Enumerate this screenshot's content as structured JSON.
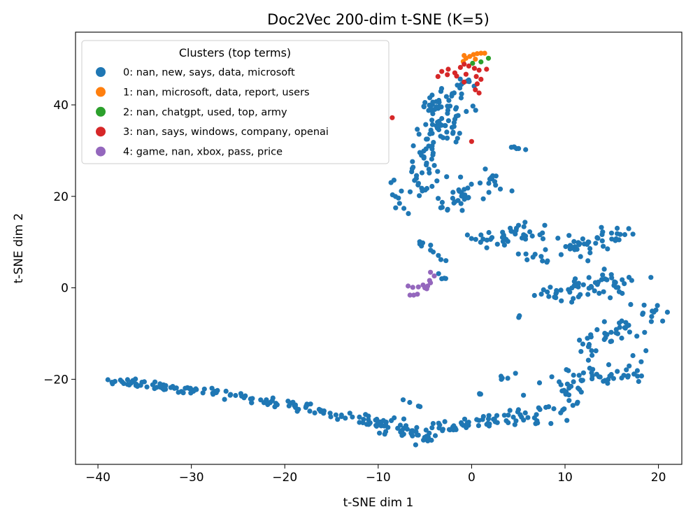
{
  "chart_data": {
    "type": "scatter",
    "title": "Doc2Vec 200-dim t-SNE (K=5)",
    "xlabel": "t-SNE dim 1",
    "ylabel": "t-SNE dim 2",
    "xlim": [
      -42.4,
      22.5
    ],
    "ylim": [
      -38.6,
      55.9
    ],
    "xticks": [
      -40,
      -30,
      -20,
      -10,
      0,
      10,
      20
    ],
    "xtick_labels": [
      "−40",
      "−30",
      "−20",
      "−10",
      "0",
      "10",
      "20"
    ],
    "yticks": [
      -20,
      0,
      20,
      40
    ],
    "ytick_labels": [
      "−20",
      "0",
      "20",
      "40"
    ],
    "grid": false,
    "legend": {
      "title": "Clusters (top terms)",
      "placement": "top-left",
      "entries": [
        {
          "label": "0: nan, new, says, data, microsoft",
          "color": "#1f77b4"
        },
        {
          "label": "1: nan, microsoft, data, report, users",
          "color": "#ff7f0e"
        },
        {
          "label": "2: nan, chatgpt, used, top, army",
          "color": "#2ca02c"
        },
        {
          "label": "3: nan, says, windows, company, openai",
          "color": "#d62728"
        },
        {
          "label": "4: game, nan, xbox, pass, price",
          "color": "#9467bd"
        }
      ]
    },
    "series": [
      {
        "name": "0: nan, new, says, data, microsoft",
        "color": "#1f77b4",
        "segments": [
          {
            "from": [
              -39.5,
              -20
            ],
            "to": [
              -27,
              -23
            ],
            "n": 60,
            "jitter": 0.8
          },
          {
            "from": [
              -27,
              -23
            ],
            "to": [
              -16,
              -27
            ],
            "n": 45,
            "jitter": 0.9
          },
          {
            "from": [
              -16,
              -27
            ],
            "to": [
              -9,
              -30
            ],
            "n": 35,
            "jitter": 1.0
          },
          {
            "from": [
              -9,
              -30
            ],
            "to": [
              -5,
              -33
            ],
            "n": 30,
            "jitter": 1.2
          },
          {
            "from": [
              -5,
              -32
            ],
            "to": [
              0,
              -30
            ],
            "n": 30,
            "jitter": 1.3
          },
          {
            "from": [
              0,
              -30
            ],
            "to": [
              6,
              -28
            ],
            "n": 30,
            "jitter": 1.3
          },
          {
            "from": [
              6,
              -28
            ],
            "to": [
              11,
              -23
            ],
            "n": 30,
            "jitter": 1.8
          },
          {
            "from": [
              9,
              -20
            ],
            "to": [
              18,
              -18
            ],
            "n": 50,
            "jitter": 2.5
          },
          {
            "from": [
              12,
              -14
            ],
            "to": [
              19,
              -5
            ],
            "n": 50,
            "jitter": 2.0
          },
          {
            "from": [
              8,
              -2
            ],
            "to": [
              17,
              2
            ],
            "n": 60,
            "jitter": 2.0
          },
          {
            "from": [
              7,
              6
            ],
            "to": [
              15,
              12
            ],
            "n": 55,
            "jitter": 2.0
          },
          {
            "from": [
              0,
              10
            ],
            "to": [
              7,
              13
            ],
            "n": 40,
            "jitter": 2.0
          },
          {
            "from": [
              -3,
              18
            ],
            "to": [
              2,
              24
            ],
            "n": 40,
            "jitter": 2.2
          },
          {
            "from": [
              -6,
              20
            ],
            "to": [
              -3,
              36
            ],
            "n": 60,
            "jitter": 1.8
          },
          {
            "from": [
              -5,
              38
            ],
            "to": [
              -1,
              45
            ],
            "n": 40,
            "jitter": 1.3
          },
          {
            "from": [
              -4,
              34
            ],
            "to": [
              -1,
              40
            ],
            "n": 25,
            "jitter": 1.5
          },
          {
            "from": [
              4,
              31
            ],
            "to": [
              6,
              30
            ],
            "n": 6,
            "jitter": 0.3
          },
          {
            "from": [
              -9,
              25
            ],
            "to": [
              -7,
              16
            ],
            "n": 10,
            "jitter": 0.6
          },
          {
            "from": [
              -6,
              11
            ],
            "to": [
              -3,
              6
            ],
            "n": 10,
            "jitter": 0.8
          },
          {
            "from": [
              -4,
              3
            ],
            "to": [
              -3,
              2
            ],
            "n": 4,
            "jitter": 0.3
          },
          {
            "from": [
              5,
              -6
            ],
            "to": [
              5,
              -7
            ],
            "n": 2,
            "jitter": 0.2
          },
          {
            "from": [
              3,
              -20
            ],
            "to": [
              5,
              -19
            ],
            "n": 5,
            "jitter": 0.5
          },
          {
            "from": [
              -5,
              -26
            ],
            "to": [
              -7,
              -25
            ],
            "n": 4,
            "jitter": 0.6
          },
          {
            "from": [
              0,
              -24
            ],
            "to": [
              1,
              -23
            ],
            "n": 3,
            "jitter": 0.3
          }
        ]
      },
      {
        "name": "1: nan, microsoft, data, report, users",
        "color": "#ff7f0e",
        "points": [
          [
            -0.8,
            50.8
          ],
          [
            -0.2,
            50.6
          ],
          [
            0.2,
            51.0
          ],
          [
            0.6,
            51.2
          ],
          [
            1.0,
            51.3
          ],
          [
            1.4,
            51.3
          ],
          [
            -0.6,
            50.2
          ],
          [
            0.4,
            50.0
          ],
          [
            -0.9,
            49.5
          ]
        ]
      },
      {
        "name": "2: nan, chatgpt, used, top, army",
        "color": "#2ca02c",
        "points": [
          [
            0.1,
            49.1
          ],
          [
            1.8,
            50.2
          ],
          [
            1.0,
            49.4
          ]
        ]
      },
      {
        "name": "3: nan, says, windows, company, openai",
        "color": "#d62728",
        "points": [
          [
            -3.2,
            47.3
          ],
          [
            -2.5,
            47.8
          ],
          [
            -1.8,
            47.0
          ],
          [
            -1.2,
            48.2
          ],
          [
            -0.8,
            48.9
          ],
          [
            -0.3,
            48.5
          ],
          [
            0.3,
            48.0
          ],
          [
            0.8,
            47.6
          ],
          [
            1.6,
            47.8
          ],
          [
            -1.6,
            46.3
          ],
          [
            -0.6,
            46.7
          ],
          [
            0.5,
            46.2
          ],
          [
            1.0,
            45.6
          ],
          [
            0.6,
            44.6
          ],
          [
            -0.8,
            45.0
          ],
          [
            -2.6,
            46.6
          ],
          [
            -3.6,
            46.2
          ],
          [
            0.8,
            42.6
          ],
          [
            0.4,
            43.3
          ],
          [
            -8.5,
            37.2
          ],
          [
            0.0,
            32.0
          ]
        ]
      },
      {
        "name": "4: game, nan, xbox, pass, price",
        "color": "#9467bd",
        "points": [
          [
            -6.8,
            0.4
          ],
          [
            -6.3,
            0.1
          ],
          [
            -5.7,
            0.2
          ],
          [
            -5.2,
            0.6
          ],
          [
            -4.7,
            0.4
          ],
          [
            -4.4,
            1.1
          ],
          [
            -4.5,
            1.6
          ],
          [
            -4.4,
            3.4
          ],
          [
            -4.0,
            2.6
          ],
          [
            -5.0,
            0.0
          ],
          [
            -4.8,
            -0.2
          ],
          [
            -6.6,
            -1.6
          ],
          [
            -6.2,
            -1.6
          ],
          [
            -5.8,
            -1.4
          ]
        ]
      }
    ]
  }
}
